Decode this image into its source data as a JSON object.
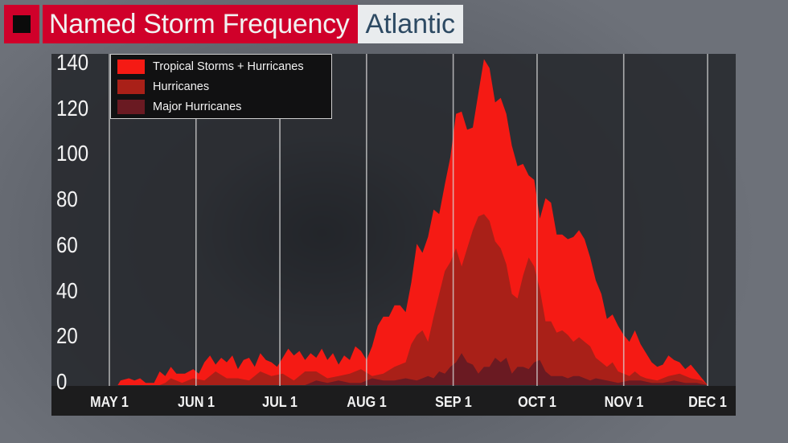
{
  "header": {
    "title": "Named Storm Frequency",
    "region": "Atlantic",
    "colors": {
      "title_bg": "#d0002a",
      "region_bg": "#e9ecee",
      "region_text": "#2d4a63"
    }
  },
  "legend": {
    "items": [
      {
        "label": "Tropical Storms + Hurricanes",
        "color": "#f51a14"
      },
      {
        "label": "Hurricanes",
        "color": "#a92018"
      },
      {
        "label": "Major Hurricanes",
        "color": "#6a1a22"
      }
    ]
  },
  "chart_data": {
    "type": "area",
    "title": "Named Storm Frequency — Atlantic",
    "xlabel": "",
    "ylabel": "",
    "ylim": [
      0,
      140
    ],
    "yticks": [
      0,
      20,
      40,
      60,
      80,
      100,
      120,
      140
    ],
    "xticks": [
      {
        "label": "MAY 1",
        "day": 0
      },
      {
        "label": "JUN 1",
        "day": 31
      },
      {
        "label": "JUL 1",
        "day": 61
      },
      {
        "label": "AUG 1",
        "day": 92
      },
      {
        "label": "SEP 1",
        "day": 123
      },
      {
        "label": "OCT 1",
        "day": 153
      },
      {
        "label": "NOV 1",
        "day": 184
      },
      {
        "label": "DEC 1",
        "day": 214
      }
    ],
    "grid": {
      "vertical": true,
      "horizontal": false
    },
    "legend_position": "upper-left",
    "x_unit": "day of season (0 = May 1)",
    "series": [
      {
        "name": "Tropical Storms + Hurricanes",
        "color": "#f51a14",
        "points": [
          [
            3,
            0
          ],
          [
            4,
            2
          ],
          [
            7,
            3
          ],
          [
            9,
            2
          ],
          [
            11,
            3
          ],
          [
            13,
            1
          ],
          [
            16,
            1
          ],
          [
            18,
            6
          ],
          [
            20,
            4
          ],
          [
            22,
            8
          ],
          [
            24,
            5
          ],
          [
            27,
            5
          ],
          [
            30,
            7
          ],
          [
            32,
            5
          ],
          [
            34,
            10
          ],
          [
            36,
            13
          ],
          [
            38,
            9
          ],
          [
            40,
            12
          ],
          [
            42,
            10
          ],
          [
            44,
            13
          ],
          [
            46,
            7
          ],
          [
            48,
            11
          ],
          [
            50,
            12
          ],
          [
            52,
            8
          ],
          [
            54,
            14
          ],
          [
            56,
            11
          ],
          [
            58,
            10
          ],
          [
            60,
            8
          ],
          [
            62,
            12
          ],
          [
            64,
            16
          ],
          [
            66,
            13
          ],
          [
            68,
            15
          ],
          [
            70,
            11
          ],
          [
            72,
            14
          ],
          [
            74,
            12
          ],
          [
            76,
            16
          ],
          [
            78,
            11
          ],
          [
            80,
            14
          ],
          [
            82,
            9
          ],
          [
            84,
            13
          ],
          [
            86,
            11
          ],
          [
            88,
            17
          ],
          [
            90,
            15
          ],
          [
            92,
            11
          ],
          [
            94,
            17
          ],
          [
            96,
            26
          ],
          [
            98,
            30
          ],
          [
            100,
            30
          ],
          [
            102,
            35
          ],
          [
            104,
            35
          ],
          [
            106,
            32
          ],
          [
            108,
            45
          ],
          [
            110,
            62
          ],
          [
            112,
            58
          ],
          [
            114,
            65
          ],
          [
            116,
            77
          ],
          [
            118,
            75
          ],
          [
            120,
            88
          ],
          [
            122,
            100
          ],
          [
            124,
            119
          ],
          [
            126,
            120
          ],
          [
            128,
            112
          ],
          [
            130,
            113
          ],
          [
            132,
            128
          ],
          [
            134,
            143
          ],
          [
            136,
            139
          ],
          [
            138,
            124
          ],
          [
            140,
            126
          ],
          [
            142,
            119
          ],
          [
            144,
            105
          ],
          [
            146,
            96
          ],
          [
            148,
            97
          ],
          [
            150,
            92
          ],
          [
            152,
            90
          ],
          [
            154,
            73
          ],
          [
            156,
            82
          ],
          [
            158,
            80
          ],
          [
            160,
            66
          ],
          [
            162,
            66
          ],
          [
            164,
            64
          ],
          [
            166,
            65
          ],
          [
            168,
            68
          ],
          [
            170,
            64
          ],
          [
            172,
            56
          ],
          [
            174,
            46
          ],
          [
            176,
            40
          ],
          [
            178,
            29
          ],
          [
            180,
            31
          ],
          [
            182,
            26
          ],
          [
            184,
            22
          ],
          [
            186,
            19
          ],
          [
            188,
            24
          ],
          [
            190,
            18
          ],
          [
            192,
            14
          ],
          [
            194,
            10
          ],
          [
            196,
            8
          ],
          [
            198,
            9
          ],
          [
            200,
            13
          ],
          [
            202,
            11
          ],
          [
            204,
            10
          ],
          [
            206,
            7
          ],
          [
            208,
            9
          ],
          [
            210,
            6
          ],
          [
            212,
            3
          ],
          [
            214,
            0
          ]
        ]
      },
      {
        "name": "Hurricanes",
        "color": "#a92018",
        "points": [
          [
            18,
            0
          ],
          [
            20,
            1
          ],
          [
            22,
            3
          ],
          [
            26,
            1
          ],
          [
            30,
            3
          ],
          [
            34,
            2
          ],
          [
            38,
            6
          ],
          [
            42,
            3
          ],
          [
            46,
            3
          ],
          [
            50,
            2
          ],
          [
            54,
            6
          ],
          [
            58,
            4
          ],
          [
            62,
            5
          ],
          [
            66,
            2
          ],
          [
            70,
            6
          ],
          [
            74,
            6
          ],
          [
            78,
            3
          ],
          [
            82,
            4
          ],
          [
            86,
            5
          ],
          [
            90,
            7
          ],
          [
            94,
            4
          ],
          [
            98,
            5
          ],
          [
            102,
            8
          ],
          [
            106,
            10
          ],
          [
            108,
            18
          ],
          [
            110,
            22
          ],
          [
            112,
            24
          ],
          [
            114,
            19
          ],
          [
            116,
            30
          ],
          [
            118,
            40
          ],
          [
            120,
            50
          ],
          [
            122,
            54
          ],
          [
            124,
            60
          ],
          [
            126,
            52
          ],
          [
            128,
            60
          ],
          [
            130,
            68
          ],
          [
            132,
            74
          ],
          [
            134,
            75
          ],
          [
            136,
            72
          ],
          [
            138,
            63
          ],
          [
            140,
            60
          ],
          [
            142,
            53
          ],
          [
            144,
            40
          ],
          [
            146,
            38
          ],
          [
            148,
            48
          ],
          [
            150,
            56
          ],
          [
            152,
            52
          ],
          [
            154,
            42
          ],
          [
            156,
            28
          ],
          [
            158,
            28
          ],
          [
            160,
            23
          ],
          [
            162,
            24
          ],
          [
            164,
            22
          ],
          [
            166,
            19
          ],
          [
            168,
            21
          ],
          [
            170,
            19
          ],
          [
            172,
            17
          ],
          [
            174,
            12
          ],
          [
            176,
            10
          ],
          [
            178,
            8
          ],
          [
            180,
            10
          ],
          [
            182,
            6
          ],
          [
            184,
            5
          ],
          [
            186,
            4
          ],
          [
            188,
            6
          ],
          [
            190,
            4
          ],
          [
            192,
            3
          ],
          [
            196,
            2
          ],
          [
            200,
            4
          ],
          [
            204,
            5
          ],
          [
            208,
            3
          ],
          [
            212,
            2
          ],
          [
            214,
            0
          ]
        ]
      },
      {
        "name": "Major Hurricanes",
        "color": "#6a1a22",
        "points": [
          [
            70,
            0
          ],
          [
            74,
            2
          ],
          [
            78,
            1
          ],
          [
            82,
            2
          ],
          [
            86,
            1
          ],
          [
            90,
            1
          ],
          [
            94,
            3
          ],
          [
            98,
            2
          ],
          [
            102,
            2
          ],
          [
            106,
            3
          ],
          [
            110,
            2
          ],
          [
            114,
            4
          ],
          [
            116,
            3
          ],
          [
            118,
            6
          ],
          [
            120,
            5
          ],
          [
            122,
            8
          ],
          [
            124,
            10
          ],
          [
            126,
            14
          ],
          [
            128,
            10
          ],
          [
            130,
            9
          ],
          [
            132,
            5
          ],
          [
            134,
            8
          ],
          [
            136,
            8
          ],
          [
            138,
            12
          ],
          [
            140,
            10
          ],
          [
            142,
            12
          ],
          [
            144,
            5
          ],
          [
            146,
            8
          ],
          [
            148,
            8
          ],
          [
            150,
            7
          ],
          [
            152,
            10
          ],
          [
            154,
            11
          ],
          [
            156,
            6
          ],
          [
            158,
            4
          ],
          [
            160,
            4
          ],
          [
            162,
            4
          ],
          [
            164,
            3
          ],
          [
            166,
            4
          ],
          [
            168,
            4
          ],
          [
            170,
            3
          ],
          [
            172,
            2
          ],
          [
            174,
            3
          ],
          [
            178,
            2
          ],
          [
            182,
            1
          ],
          [
            186,
            2
          ],
          [
            190,
            2
          ],
          [
            194,
            1
          ],
          [
            198,
            1
          ],
          [
            202,
            2
          ],
          [
            206,
            1
          ],
          [
            210,
            1
          ],
          [
            214,
            0
          ]
        ]
      }
    ]
  }
}
